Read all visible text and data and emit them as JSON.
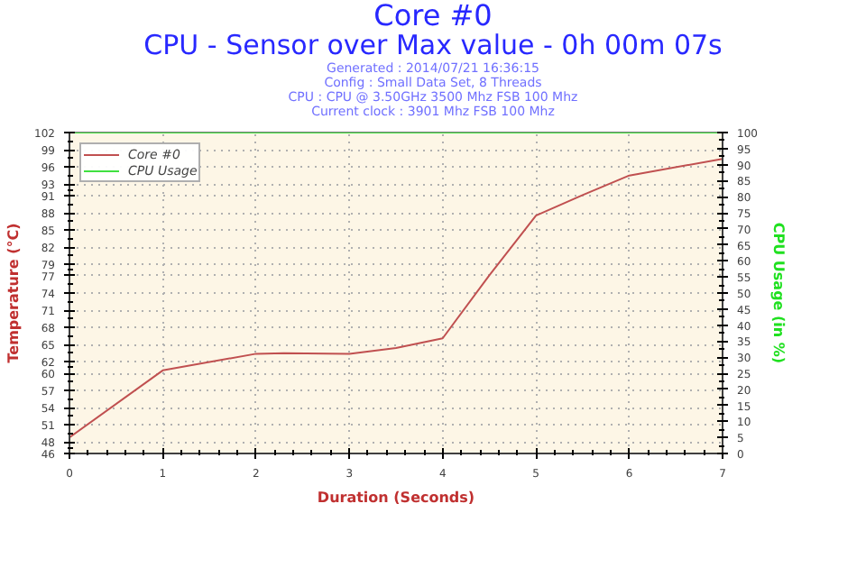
{
  "chart_data": {
    "type": "line",
    "title": "Core #0",
    "subtitle": "CPU - Sensor over Max value - 0h 00m 07s",
    "annotations": [
      "Generated : 2014/07/21 16:36:15",
      "Config : Small Data Set, 8 Threads",
      "CPU : CPU @ 3.50GHz 3500 Mhz FSB 100 Mhz",
      "Current clock : 3901 Mhz FSB 100 Mhz"
    ],
    "xlabel": "Duration (Seconds)",
    "ylabel": "Temperature (°C)",
    "y2label": "CPU Usage (in %)",
    "x": [
      0,
      1,
      2,
      2.3,
      3,
      3.5,
      4,
      4.5,
      5,
      5.5,
      6,
      7
    ],
    "series": [
      {
        "name": "Core #0",
        "color": "#c05050",
        "values": [
          48.8,
          60.5,
          63.4,
          63.5,
          63.4,
          64.4,
          66.1,
          77.1,
          87.5,
          91.1,
          94.5,
          97.4
        ]
      },
      {
        "name": "CPU Usage",
        "color": "#40e040",
        "axis": "y2",
        "values": [
          100,
          100,
          100,
          100,
          100,
          100,
          100,
          100,
          100,
          100,
          100,
          100
        ]
      }
    ],
    "xlim": [
      0,
      7
    ],
    "xticks": [
      0,
      1,
      2,
      3,
      4,
      5,
      6,
      7
    ],
    "ylim": [
      46,
      102
    ],
    "yticks": [
      46,
      48,
      51,
      54,
      57,
      60,
      62,
      65,
      68,
      71,
      74,
      77,
      79,
      82,
      85,
      88,
      91,
      93,
      96,
      99,
      102
    ],
    "y2lim": [
      0,
      100
    ],
    "y2ticks": [
      0,
      5,
      10,
      15,
      20,
      25,
      30,
      35,
      40,
      45,
      50,
      55,
      60,
      65,
      70,
      75,
      80,
      85,
      90,
      95,
      100
    ],
    "grid": true,
    "legend": "top left",
    "marker": "none",
    "line_style": "solid"
  }
}
